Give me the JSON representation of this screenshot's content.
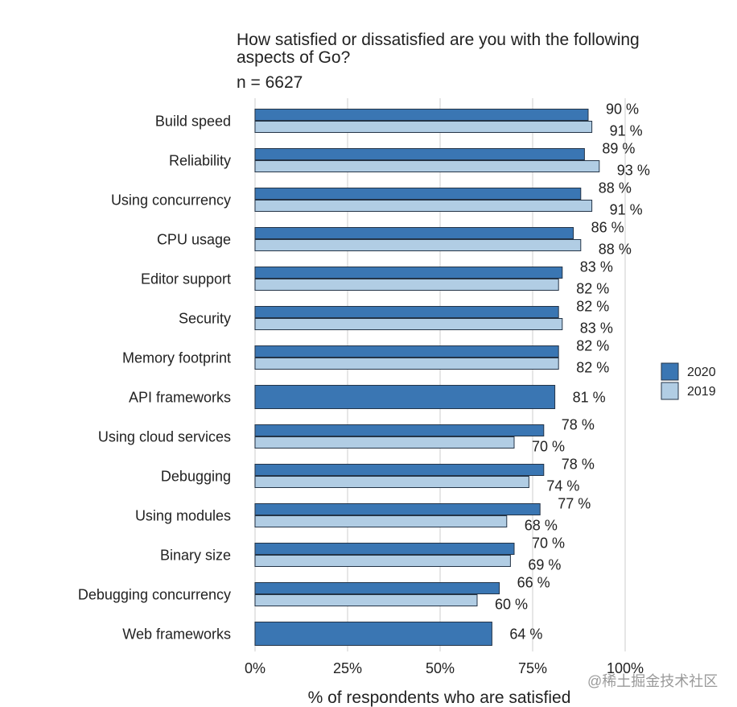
{
  "chart_data": {
    "type": "bar",
    "title": "How satisfied or dissatisfied are you with the following aspects of Go?",
    "subtitle": "n = 6627",
    "xlabel": "% of respondents who are satisfied",
    "ylabel": "",
    "xlim": [
      0,
      100
    ],
    "x_ticks": [
      "0%",
      "25%",
      "50%",
      "75%",
      "100%"
    ],
    "grid": true,
    "legend_position": "right",
    "categories": [
      "Build speed",
      "Reliability",
      "Using concurrency",
      "CPU usage",
      "Editor support",
      "Security",
      "Memory footprint",
      "API frameworks",
      "Using cloud services",
      "Debugging",
      "Using modules",
      "Binary size",
      "Debugging concurrency",
      "Web frameworks"
    ],
    "series": [
      {
        "name": "2020",
        "color": "#3a76b3",
        "values": [
          90,
          89,
          88,
          86,
          83,
          82,
          82,
          81,
          78,
          78,
          77,
          70,
          66,
          64
        ],
        "labels": [
          "90 %",
          "89 %",
          "88 %",
          "86 %",
          "83 %",
          "82 %",
          "82 %",
          "81 %",
          "78 %",
          "78 %",
          "77 %",
          "70 %",
          "66 %",
          "64 %"
        ]
      },
      {
        "name": "2019",
        "color": "#b1cde4",
        "values": [
          91,
          93,
          91,
          88,
          82,
          83,
          82,
          null,
          70,
          74,
          68,
          69,
          60,
          null
        ],
        "labels": [
          "91 %",
          "93 %",
          "91 %",
          "88 %",
          "82 %",
          "83 %",
          "82 %",
          null,
          "70 %",
          "74 %",
          "68 %",
          "69 %",
          "60 %",
          null
        ]
      }
    ]
  },
  "watermark": "@稀土掘金技术社区"
}
